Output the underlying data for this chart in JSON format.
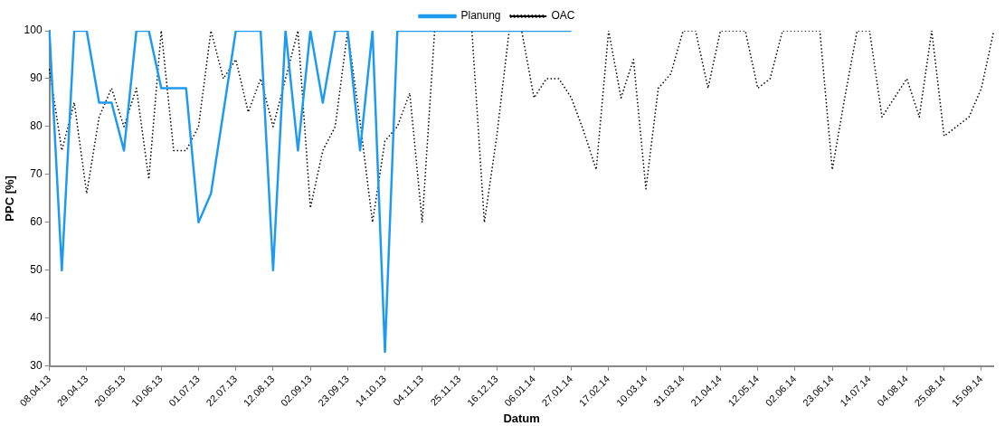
{
  "chart_data": {
    "type": "line",
    "xlabel": "Datum",
    "ylabel": "PPC [%]",
    "categories": [
      "08.04.13",
      null,
      null,
      "29.04.13",
      null,
      null,
      "20.05.13",
      null,
      null,
      "10.06.13",
      null,
      null,
      "01.07.13",
      null,
      null,
      "22.07.13",
      null,
      null,
      "12.08.13",
      null,
      null,
      "02.09.13",
      null,
      null,
      "23.09.13",
      null,
      null,
      "14.10.13",
      null,
      null,
      "04.11.13",
      null,
      null,
      "25.11.13",
      null,
      null,
      "16.12.13",
      null,
      null,
      "06.01.14",
      null,
      null,
      "27.01.14",
      null,
      null,
      "17.02.14",
      null,
      null,
      "10.03.14",
      null,
      null,
      "31.03.14",
      null,
      null,
      "21.04.14",
      null,
      null,
      "12.05.14",
      null,
      null,
      "02.06.14",
      null,
      null,
      "23.06.14",
      null,
      null,
      "14.07.14",
      null,
      null,
      "04.08.14",
      null,
      null,
      "25.08.14",
      null,
      null,
      "15.09.14",
      null
    ],
    "series": [
      {
        "name": "Planung",
        "color": "#1e9bf0",
        "line_style": "solid",
        "values": [
          100,
          50,
          100,
          100,
          85,
          85,
          75,
          100,
          100,
          88,
          88,
          88,
          60,
          66,
          83,
          100,
          100,
          100,
          50,
          100,
          75,
          100,
          85,
          100,
          100,
          75,
          100,
          33,
          100,
          100,
          100,
          100,
          100,
          100,
          100,
          100,
          100,
          100,
          100,
          100,
          100,
          100,
          100,
          null,
          null,
          null,
          null,
          null,
          null,
          null,
          null,
          null,
          null,
          null,
          null,
          null,
          null,
          null,
          null,
          null,
          null,
          null,
          null,
          null,
          null,
          null,
          null,
          null,
          null,
          null,
          null,
          null,
          null,
          null,
          null,
          null,
          null
        ]
      },
      {
        "name": "OAC",
        "color": "#000000",
        "line_style": "dotted",
        "values": [
          92,
          75,
          85,
          66,
          82,
          88,
          80,
          88,
          69,
          100,
          75,
          75,
          80,
          100,
          90,
          94,
          83,
          90,
          80,
          90,
          100,
          63,
          75,
          80,
          100,
          81,
          60,
          77,
          80,
          87,
          60,
          100,
          100,
          100,
          100,
          60,
          78,
          100,
          100,
          86,
          90,
          90,
          86,
          79,
          71,
          100,
          86,
          94,
          67,
          88,
          91,
          100,
          100,
          88,
          100,
          100,
          100,
          88,
          90,
          100,
          100,
          100,
          100,
          71,
          86,
          100,
          100,
          82,
          86,
          90,
          82,
          100,
          78,
          80,
          82,
          88,
          100
        ]
      }
    ],
    "ylim": [
      30,
      100
    ],
    "yticks": [
      30,
      40,
      50,
      60,
      70,
      80,
      90,
      100
    ],
    "grid": false,
    "legend": "top",
    "marker": "none"
  }
}
